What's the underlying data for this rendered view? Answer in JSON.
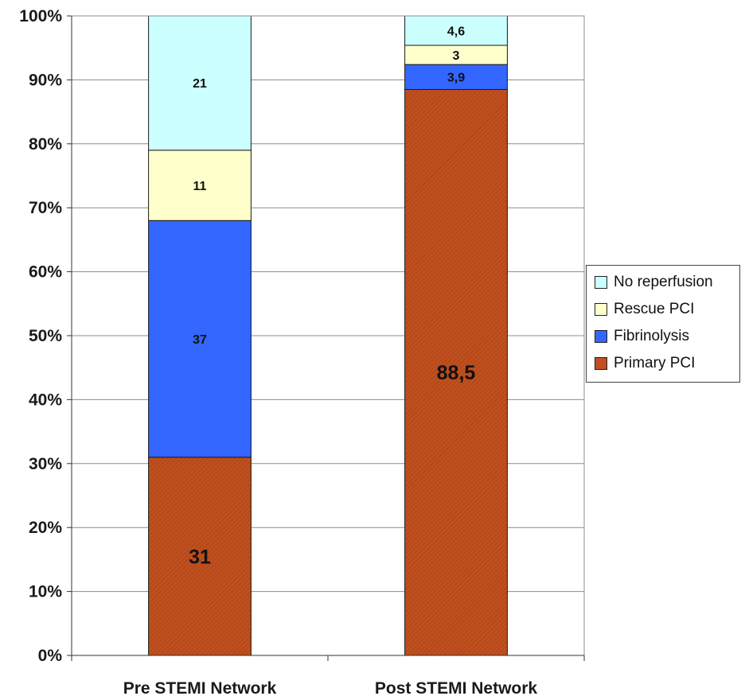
{
  "chart_data": {
    "type": "bar",
    "stacked": true,
    "categories": [
      "Pre STEMI Network",
      "Post STEMI Network"
    ],
    "series": [
      {
        "name": "Primary PCI",
        "values": [
          31,
          88.5
        ],
        "labels": [
          "31",
          "88,5"
        ],
        "color": "#C0501F",
        "pattern": "diagonal-hatch"
      },
      {
        "name": "Fibrinolysis",
        "values": [
          37,
          3.9
        ],
        "labels": [
          "37",
          "3,9"
        ],
        "color": "#3366FF"
      },
      {
        "name": "Rescue PCI",
        "values": [
          11,
          3
        ],
        "labels": [
          "11",
          "3"
        ],
        "color": "#FFFFCC"
      },
      {
        "name": "No reperfusion",
        "values": [
          21,
          4.6
        ],
        "labels": [
          "21",
          "4,6"
        ],
        "color": "#CCFFFF"
      }
    ],
    "yticks": [
      "0%",
      "10%",
      "20%",
      "30%",
      "40%",
      "50%",
      "60%",
      "70%",
      "80%",
      "90%",
      "100%"
    ],
    "ylim": [
      0,
      100
    ],
    "grid": true,
    "legend_position": "right",
    "legend_order": [
      "No reperfusion",
      "Rescue PCI",
      "Fibrinolysis",
      "Primary PCI"
    ]
  }
}
